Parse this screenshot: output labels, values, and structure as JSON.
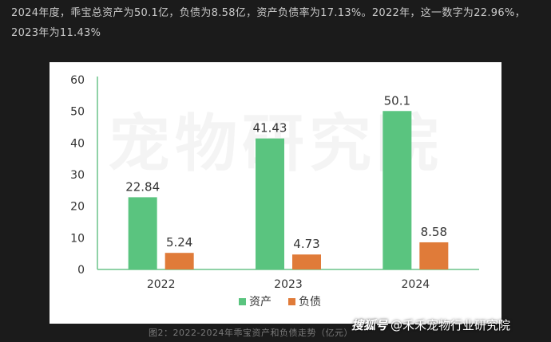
{
  "intro_text": "2024年度，乖宝总资产为50.1亿，负债为8.58亿，资产负债率为17.13%。2022年，这一数字为22.96%，2023年为11.43%",
  "watermark_text": "宠物研究院",
  "caption": "图2：2022-2024年乖宝资产和负债走势（亿元）",
  "credit": {
    "tag": "搜狐号",
    "account": "@禾禾宠物行业研究院"
  },
  "colors": {
    "assets": "#5ac47f",
    "liabilities": "#e07b39",
    "axis": "#6bc48a",
    "text": "#333333"
  },
  "chart_data": {
    "type": "bar",
    "categories": [
      "2022",
      "2023",
      "2024"
    ],
    "series": [
      {
        "name": "资产",
        "values": [
          22.84,
          41.43,
          50.1
        ],
        "labels": [
          "22.84",
          "41.43",
          "50.1"
        ]
      },
      {
        "name": "负债",
        "values": [
          5.24,
          4.73,
          8.58
        ],
        "labels": [
          "5.24",
          "4.73",
          "8.58"
        ]
      }
    ],
    "title": "",
    "xlabel": "",
    "ylabel": "",
    "ylim": [
      0,
      60
    ],
    "yticks": [
      0,
      10,
      20,
      30,
      40,
      50,
      60
    ],
    "grid": false,
    "legend_position": "bottom-center"
  }
}
